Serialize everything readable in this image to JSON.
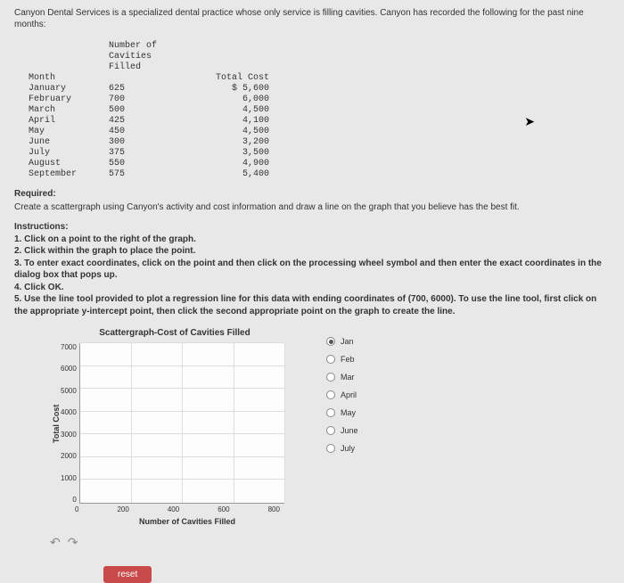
{
  "intro": "Canyon Dental Services is a specialized dental practice whose only service is filling cavities. Canyon has recorded the following for the past nine months:",
  "table": {
    "headers": {
      "c1": "Month",
      "c2": "Number of\nCavities\nFilled",
      "c3": "Total Cost"
    },
    "rows": [
      {
        "month": "January",
        "cavities": "625",
        "cost": "$ 5,600"
      },
      {
        "month": "February",
        "cavities": "700",
        "cost": "6,000"
      },
      {
        "month": "March",
        "cavities": "500",
        "cost": "4,500"
      },
      {
        "month": "April",
        "cavities": "425",
        "cost": "4,100"
      },
      {
        "month": "May",
        "cavities": "450",
        "cost": "4,500"
      },
      {
        "month": "June",
        "cavities": "300",
        "cost": "3,200"
      },
      {
        "month": "July",
        "cavities": "375",
        "cost": "3,500"
      },
      {
        "month": "August",
        "cavities": "550",
        "cost": "4,900"
      },
      {
        "month": "September",
        "cavities": "575",
        "cost": "5,400"
      }
    ]
  },
  "required_label": "Required:",
  "required_text": "Create a scattergraph using Canyon's activity and cost information and draw a line on the graph that you believe has the best fit.",
  "instructions_label": "Instructions:",
  "instructions": [
    "1. Click on a point to the right of the graph.",
    "2. Click within the graph to place the point.",
    "3. To enter exact coordinates, click on the point and then click on the processing wheel symbol and then enter the exact coordinates in the dialog box that pops up.",
    "4. Click OK.",
    "5. Use the line tool provided to plot a regression line for this data with ending coordinates of (700, 6000). To use the line tool, first click on the appropriate y-intercept point, then click the second appropriate point on the graph to create the line."
  ],
  "chart": {
    "title": "Scattergraph-Cost of Cavities Filled",
    "ylabel": "Total Cost",
    "xlabel": "Number of Cavities Filled",
    "yticks": [
      "7000",
      "6000",
      "5000",
      "4000",
      "3000",
      "2000",
      "1000",
      "0"
    ],
    "xticks": [
      "0",
      "200",
      "400",
      "600",
      "800"
    ],
    "background_color": "#fdfdfd",
    "grid_color": "#ddd",
    "axis_color": "#999"
  },
  "radios": [
    "Jan",
    "Feb",
    "Mar",
    "April",
    "May",
    "June",
    "July"
  ],
  "reset_label": "reset",
  "undo_icons": {
    "undo": "↶",
    "redo": "↷"
  }
}
